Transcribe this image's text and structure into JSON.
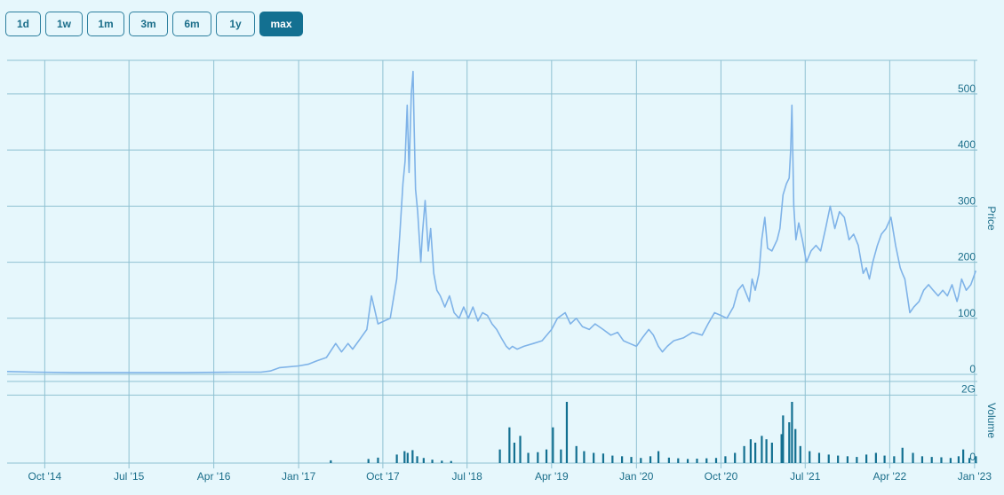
{
  "range_buttons": [
    {
      "label": "1d",
      "active": false
    },
    {
      "label": "1w",
      "active": false
    },
    {
      "label": "1m",
      "active": false
    },
    {
      "label": "3m",
      "active": false
    },
    {
      "label": "6m",
      "active": false
    },
    {
      "label": "1y",
      "active": false
    },
    {
      "label": "max",
      "active": true
    }
  ],
  "colors": {
    "background": "#e6f7fc",
    "grid": "#8fc1d2",
    "price_line": "#7fb3e8",
    "volume_bars": "#137091",
    "active_button": "#137091"
  },
  "chart_data": [
    {
      "type": "line",
      "ylabel": "Price",
      "ylim": [
        0,
        560
      ],
      "xlim": [
        "2014-06-01",
        "2023-01-10"
      ],
      "y_ticks": [
        0,
        100,
        200,
        300,
        400,
        500
      ],
      "y_tick_labels": [
        "0",
        "100",
        "200",
        "300",
        "400",
        "500"
      ],
      "grid": true,
      "series": [
        {
          "x": [
            "2014-06-01",
            "2014-09-01",
            "2015-01-01",
            "2015-06-01",
            "2016-01-01",
            "2016-06-01",
            "2016-09-01",
            "2016-10-01",
            "2016-11-01",
            "2017-01-01",
            "2017-02-01",
            "2017-03-01",
            "2017-04-01",
            "2017-05-01",
            "2017-05-20",
            "2017-06-10",
            "2017-06-25",
            "2017-07-15",
            "2017-08-10",
            "2017-08-25",
            "2017-09-15",
            "2017-10-05",
            "2017-10-25",
            "2017-11-15",
            "2017-11-25",
            "2017-12-05",
            "2017-12-12",
            "2017-12-19",
            "2017-12-25",
            "2018-01-01",
            "2018-01-07",
            "2018-01-10",
            "2018-01-15",
            "2018-01-22",
            "2018-02-01",
            "2018-02-06",
            "2018-02-15",
            "2018-02-25",
            "2018-03-05",
            "2018-03-15",
            "2018-03-25",
            "2018-04-05",
            "2018-04-20",
            "2018-05-05",
            "2018-05-20",
            "2018-06-05",
            "2018-06-20",
            "2018-07-05",
            "2018-07-20",
            "2018-08-05",
            "2018-08-20",
            "2018-09-05",
            "2018-09-20",
            "2018-10-05",
            "2018-10-20",
            "2018-11-05",
            "2018-11-15",
            "2018-11-25",
            "2018-12-10",
            "2019-01-01",
            "2019-02-01",
            "2019-03-01",
            "2019-04-01",
            "2019-04-20",
            "2019-05-15",
            "2019-06-01",
            "2019-06-20",
            "2019-07-10",
            "2019-08-01",
            "2019-08-20",
            "2019-09-15",
            "2019-10-10",
            "2019-11-01",
            "2019-11-20",
            "2019-12-10",
            "2020-01-01",
            "2020-01-20",
            "2020-02-10",
            "2020-02-25",
            "2020-03-12",
            "2020-03-25",
            "2020-04-10",
            "2020-05-01",
            "2020-06-01",
            "2020-07-01",
            "2020-08-01",
            "2020-08-20",
            "2020-09-10",
            "2020-10-01",
            "2020-10-20",
            "2020-11-10",
            "2020-11-25",
            "2020-12-10",
            "2021-01-01",
            "2021-01-10",
            "2021-01-20",
            "2021-02-01",
            "2021-02-10",
            "2021-02-20",
            "2021-03-01",
            "2021-03-15",
            "2021-04-01",
            "2021-04-10",
            "2021-04-20",
            "2021-05-01",
            "2021-05-10",
            "2021-05-15",
            "2021-05-19",
            "2021-05-25",
            "2021-06-01",
            "2021-06-10",
            "2021-06-22",
            "2021-07-05",
            "2021-07-20",
            "2021-08-05",
            "2021-08-20",
            "2021-09-05",
            "2021-09-20",
            "2021-10-05",
            "2021-10-20",
            "2021-11-05",
            "2021-11-20",
            "2021-12-05",
            "2021-12-20",
            "2022-01-05",
            "2022-01-15",
            "2022-01-25",
            "2022-02-05",
            "2022-02-20",
            "2022-03-05",
            "2022-03-20",
            "2022-04-05",
            "2022-04-20",
            "2022-05-05",
            "2022-05-12",
            "2022-05-20",
            "2022-06-05",
            "2022-06-18",
            "2022-07-05",
            "2022-07-20",
            "2022-08-05",
            "2022-08-20",
            "2022-09-05",
            "2022-09-20",
            "2022-10-05",
            "2022-10-20",
            "2022-11-05",
            "2022-11-10",
            "2022-11-20",
            "2022-12-05",
            "2022-12-20",
            "2023-01-05"
          ],
          "y": [
            5,
            4,
            3,
            3,
            3,
            4,
            4,
            6,
            12,
            15,
            18,
            24,
            30,
            55,
            40,
            55,
            45,
            60,
            80,
            140,
            90,
            95,
            100,
            170,
            250,
            340,
            380,
            480,
            360,
            500,
            540,
            450,
            330,
            290,
            200,
            250,
            310,
            220,
            260,
            180,
            150,
            140,
            120,
            140,
            110,
            100,
            120,
            100,
            120,
            95,
            110,
            105,
            90,
            80,
            65,
            50,
            45,
            50,
            45,
            50,
            55,
            60,
            80,
            100,
            110,
            90,
            100,
            85,
            80,
            90,
            80,
            70,
            75,
            60,
            55,
            50,
            65,
            80,
            70,
            50,
            40,
            50,
            60,
            65,
            75,
            70,
            90,
            110,
            105,
            100,
            120,
            150,
            160,
            130,
            170,
            150,
            180,
            240,
            280,
            225,
            220,
            240,
            260,
            320,
            340,
            350,
            400,
            480,
            300,
            240,
            270,
            240,
            200,
            220,
            230,
            220,
            260,
            300,
            260,
            290,
            280,
            240,
            250,
            230,
            180,
            190,
            170,
            200,
            230,
            250,
            260,
            280,
            230,
            190,
            180,
            170,
            110,
            120,
            130,
            150,
            160,
            150,
            140,
            150,
            140,
            160,
            130,
            140,
            170,
            150,
            160,
            185
          ]
        }
      ]
    },
    {
      "type": "bar",
      "ylabel": "Volume",
      "ylim": [
        0,
        2400000000
      ],
      "y_ticks": [
        0,
        2000000000
      ],
      "y_tick_labels": [
        "0",
        "2G"
      ],
      "x_ticks": [
        "2014-10-01",
        "2015-07-01",
        "2016-04-01",
        "2017-01-01",
        "2017-10-01",
        "2018-07-01",
        "2019-04-01",
        "2020-01-01",
        "2020-10-01",
        "2021-07-01",
        "2022-04-01",
        "2023-01-01"
      ],
      "x_tick_labels": [
        "Oct '14",
        "Jul '15",
        "Apr '16",
        "Jan '17",
        "Oct '17",
        "Jul '18",
        "Apr '19",
        "Jan '20",
        "Oct '20",
        "Jul '21",
        "Apr '22",
        "Jan '23"
      ],
      "grid": true,
      "series": [
        {
          "x": [
            "2017-04-15",
            "2017-08-15",
            "2017-09-15",
            "2017-11-15",
            "2017-12-10",
            "2017-12-20",
            "2018-01-05",
            "2018-01-20",
            "2018-02-10",
            "2018-03-10",
            "2018-04-10",
            "2018-05-10",
            "2018-10-15",
            "2018-11-15",
            "2018-12-01",
            "2018-12-20",
            "2019-01-15",
            "2019-02-15",
            "2019-03-15",
            "2019-04-05",
            "2019-05-01",
            "2019-05-20",
            "2019-06-20",
            "2019-07-15",
            "2019-08-15",
            "2019-09-15",
            "2019-10-15",
            "2019-11-15",
            "2019-12-15",
            "2020-01-15",
            "2020-02-15",
            "2020-03-12",
            "2020-04-15",
            "2020-05-15",
            "2020-06-15",
            "2020-07-15",
            "2020-08-15",
            "2020-09-15",
            "2020-10-15",
            "2020-11-15",
            "2020-12-15",
            "2021-01-05",
            "2021-01-20",
            "2021-02-10",
            "2021-02-25",
            "2021-03-15",
            "2021-04-15",
            "2021-04-20",
            "2021-05-10",
            "2021-05-19",
            "2021-05-30",
            "2021-06-15",
            "2021-07-15",
            "2021-08-15",
            "2021-09-15",
            "2021-10-15",
            "2021-11-15",
            "2021-12-15",
            "2022-01-15",
            "2022-02-15",
            "2022-03-15",
            "2022-04-15",
            "2022-05-12",
            "2022-06-15",
            "2022-07-15",
            "2022-08-15",
            "2022-09-15",
            "2022-10-15",
            "2022-11-10",
            "2022-11-25",
            "2022-12-15",
            "2023-01-05"
          ],
          "values": [
            80000000,
            120000000,
            160000000,
            250000000,
            350000000,
            300000000,
            380000000,
            200000000,
            150000000,
            100000000,
            70000000,
            60000000,
            400000000,
            1050000000,
            600000000,
            800000000,
            300000000,
            320000000,
            400000000,
            1050000000,
            400000000,
            1800000000,
            500000000,
            350000000,
            300000000,
            280000000,
            220000000,
            200000000,
            180000000,
            150000000,
            200000000,
            350000000,
            160000000,
            140000000,
            120000000,
            130000000,
            140000000,
            150000000,
            200000000,
            300000000,
            500000000,
            700000000,
            600000000,
            800000000,
            700000000,
            600000000,
            850000000,
            1400000000,
            1200000000,
            1800000000,
            1000000000,
            500000000,
            350000000,
            300000000,
            250000000,
            220000000,
            200000000,
            180000000,
            250000000,
            300000000,
            220000000,
            200000000,
            450000000,
            300000000,
            200000000,
            180000000,
            170000000,
            150000000,
            200000000,
            400000000,
            150000000,
            200000000
          ]
        }
      ]
    }
  ]
}
